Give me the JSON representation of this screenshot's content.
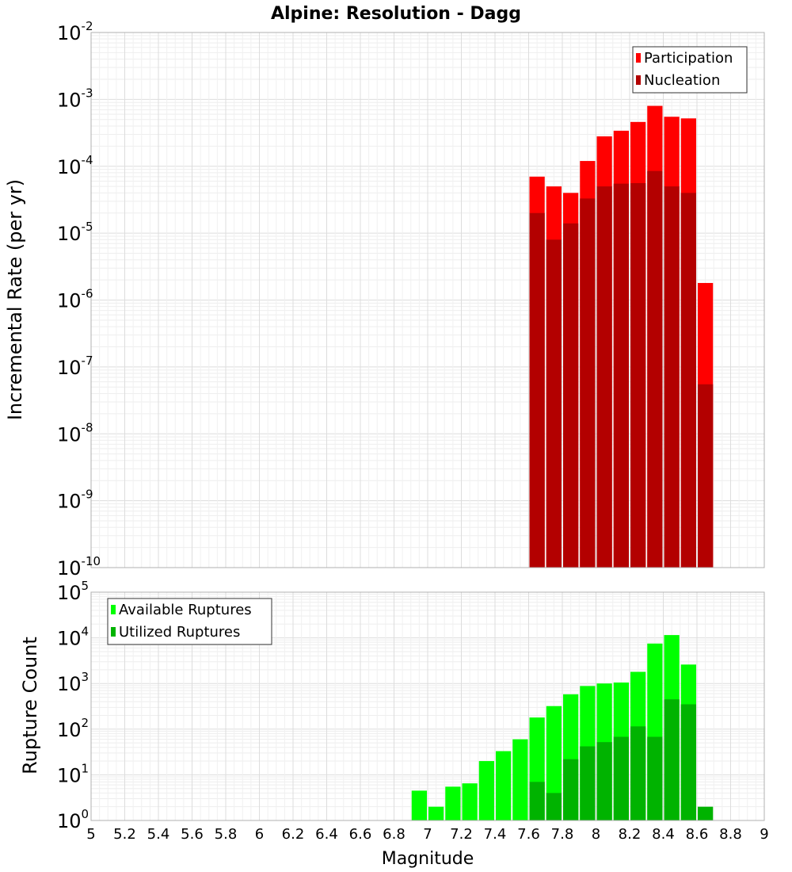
{
  "title": "Alpine: Resolution - Dagg",
  "xlabel": "Magnitude",
  "x_ticks": [
    "5",
    "5.2",
    "5.4",
    "5.6",
    "5.8",
    "6",
    "6.2",
    "6.4",
    "6.6",
    "6.8",
    "7",
    "7.2",
    "7.4",
    "7.6",
    "7.8",
    "8",
    "8.2",
    "8.4",
    "8.6",
    "8.8",
    "9"
  ],
  "chart_data": [
    {
      "type": "bar",
      "ylabel": "Incremental Rate (per yr)",
      "y_scale": "log",
      "ylim": [
        1e-10,
        0.01
      ],
      "xlim": [
        5,
        9
      ],
      "bin_width": 0.1,
      "grid": true,
      "legend_position": "top-right",
      "y_ticks": [
        {
          "base": "10",
          "exp": "-10"
        },
        {
          "base": "10",
          "exp": "-9"
        },
        {
          "base": "10",
          "exp": "-8"
        },
        {
          "base": "10",
          "exp": "-7"
        },
        {
          "base": "10",
          "exp": "-6"
        },
        {
          "base": "10",
          "exp": "-5"
        },
        {
          "base": "10",
          "exp": "-4"
        },
        {
          "base": "10",
          "exp": "-3"
        },
        {
          "base": "10",
          "exp": "-2"
        }
      ],
      "x": [
        7.65,
        7.75,
        7.85,
        7.95,
        8.05,
        8.15,
        8.25,
        8.35,
        8.45,
        8.55,
        8.65
      ],
      "series": [
        {
          "name": "Participation",
          "color": "#ff0000",
          "values": [
            7e-05,
            5e-05,
            4e-05,
            0.00012,
            0.00028,
            0.00034,
            0.00046,
            0.0008,
            0.00055,
            0.00052,
            1.8e-06
          ]
        },
        {
          "name": "Nucleation",
          "color": "#b30000",
          "values": [
            2e-05,
            8e-06,
            1.4e-05,
            3.3e-05,
            5e-05,
            5.5e-05,
            5.6e-05,
            8.5e-05,
            5e-05,
            4e-05,
            5.5e-08
          ]
        }
      ]
    },
    {
      "type": "bar",
      "ylabel": "Rupture Count",
      "y_scale": "log",
      "ylim": [
        1,
        100000.0
      ],
      "xlim": [
        5,
        9
      ],
      "bin_width": 0.1,
      "grid": true,
      "legend_position": "top-left",
      "y_ticks": [
        {
          "base": "10",
          "exp": "0"
        },
        {
          "base": "10",
          "exp": "1"
        },
        {
          "base": "10",
          "exp": "2"
        },
        {
          "base": "10",
          "exp": "3"
        },
        {
          "base": "10",
          "exp": "4"
        },
        {
          "base": "10",
          "exp": "5"
        }
      ],
      "x": [
        6.95,
        7.05,
        7.15,
        7.25,
        7.35,
        7.45,
        7.55,
        7.65,
        7.75,
        7.85,
        7.95,
        8.05,
        8.15,
        8.25,
        8.35,
        8.45,
        8.55,
        8.65
      ],
      "series": [
        {
          "name": "Available Ruptures",
          "color": "#00ff00",
          "values": [
            4.5,
            2,
            5.5,
            6.5,
            20,
            33,
            60,
            180,
            320,
            580,
            880,
            1000,
            1050,
            1800,
            7500,
            11500,
            2600,
            0
          ]
        },
        {
          "name": "Utilized Ruptures",
          "color": "#00b300",
          "values": [
            0,
            0,
            0,
            0,
            0,
            0,
            0,
            7,
            4,
            22,
            42,
            52,
            68,
            115,
            68,
            450,
            350,
            2
          ]
        }
      ]
    }
  ]
}
